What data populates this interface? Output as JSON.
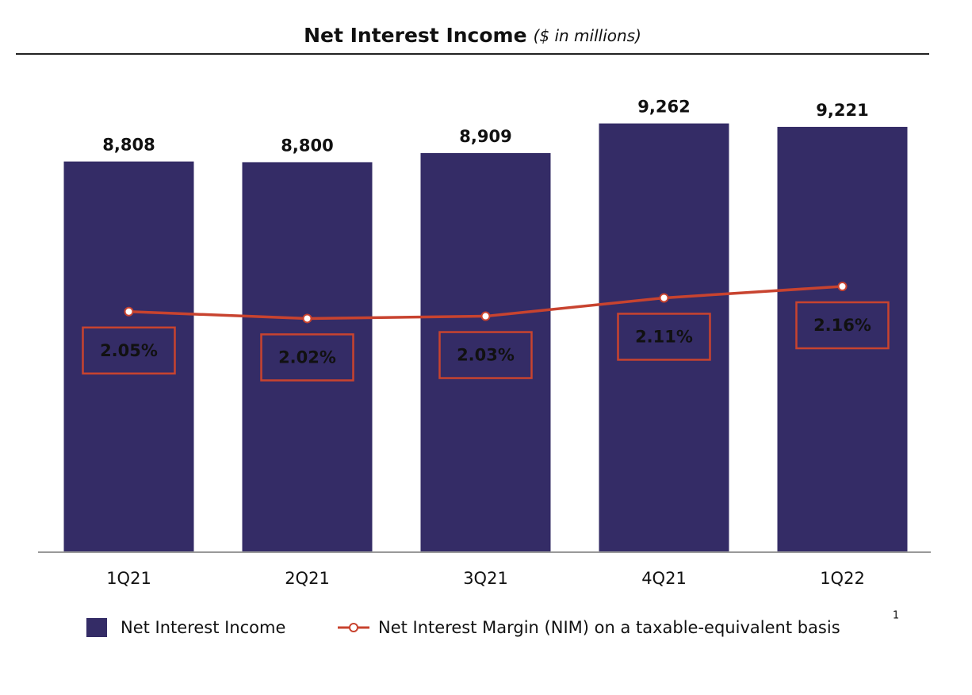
{
  "chart_data": {
    "type": "bar-line",
    "title": "Net Interest Income",
    "subtitle": "($ in millions)",
    "categories": [
      "1Q21",
      "2Q21",
      "3Q21",
      "4Q21",
      "1Q22"
    ],
    "series": [
      {
        "name": "Net Interest Income",
        "type": "bar",
        "color": "#342c66",
        "values": [
          8808,
          8800,
          8909,
          9262,
          9221
        ],
        "value_labels": [
          "8,808",
          "8,800",
          "8,909",
          "9,262",
          "9,221"
        ]
      },
      {
        "name": "Net Interest Margin (NIM) on a taxable-equivalent basis",
        "type": "line",
        "axis": "y2",
        "color": "#c8432f",
        "values": [
          2.05,
          2.02,
          2.03,
          2.11,
          2.16
        ],
        "value_labels": [
          "2.05%",
          "2.02%",
          "2.03%",
          "2.11%",
          "2.16%"
        ]
      }
    ],
    "legend_footnote": "1",
    "ylim": [
      4150,
      9750
    ],
    "y2lim": [
      1.0,
      3.05
    ]
  }
}
